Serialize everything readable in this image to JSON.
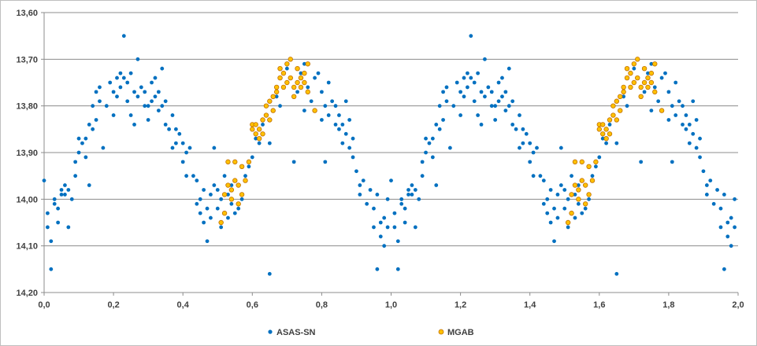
{
  "chart_data": {
    "type": "scatter",
    "title": "",
    "xlabel": "",
    "ylabel": "",
    "xlim": [
      0.0,
      2.0
    ],
    "ylim": [
      13.6,
      14.2
    ],
    "y_inverted": true,
    "grid": "horizontal major gridlines",
    "legend_position": "bottom",
    "x_ticks": [
      "0,0",
      "0,2",
      "0,4",
      "0,6",
      "0,8",
      "1,0",
      "1,2",
      "1,4",
      "1,6",
      "1,8",
      "2,0"
    ],
    "y_ticks": [
      "13,60",
      "13,70",
      "13,80",
      "13,90",
      "14,00",
      "14,10",
      "14,20"
    ],
    "series": [
      {
        "name": "ASAS-SN",
        "color": "#0070c0",
        "marker": "filled-circle",
        "note_periodic": "points repeat with phase offset 1.0",
        "points": [
          [
            0.0,
            13.96
          ],
          [
            0.01,
            14.03
          ],
          [
            0.01,
            14.06
          ],
          [
            0.02,
            14.09
          ],
          [
            0.02,
            14.15
          ],
          [
            0.03,
            14.01
          ],
          [
            0.03,
            14.0
          ],
          [
            0.04,
            14.05
          ],
          [
            0.04,
            14.02
          ],
          [
            0.05,
            13.99
          ],
          [
            0.05,
            13.98
          ],
          [
            0.06,
            13.97
          ],
          [
            0.06,
            13.99
          ],
          [
            0.07,
            14.06
          ],
          [
            0.07,
            13.98
          ],
          [
            0.08,
            14.0
          ],
          [
            0.09,
            13.95
          ],
          [
            0.09,
            13.92
          ],
          [
            0.1,
            13.87
          ],
          [
            0.1,
            13.9
          ],
          [
            0.11,
            13.88
          ],
          [
            0.12,
            13.91
          ],
          [
            0.12,
            13.87
          ],
          [
            0.13,
            13.84
          ],
          [
            0.13,
            13.97
          ],
          [
            0.14,
            13.8
          ],
          [
            0.14,
            13.85
          ],
          [
            0.15,
            13.77
          ],
          [
            0.15,
            13.83
          ],
          [
            0.16,
            13.76
          ],
          [
            0.16,
            13.79
          ],
          [
            0.17,
            13.89
          ],
          [
            0.18,
            13.8
          ],
          [
            0.19,
            13.75
          ],
          [
            0.2,
            13.77
          ],
          [
            0.2,
            13.82
          ],
          [
            0.21,
            13.74
          ],
          [
            0.21,
            13.78
          ],
          [
            0.22,
            13.73
          ],
          [
            0.22,
            13.76
          ],
          [
            0.23,
            13.65
          ],
          [
            0.23,
            13.74
          ],
          [
            0.24,
            13.75
          ],
          [
            0.24,
            13.79
          ],
          [
            0.25,
            13.73
          ],
          [
            0.25,
            13.82
          ],
          [
            0.26,
            13.77
          ],
          [
            0.26,
            13.84
          ],
          [
            0.27,
            13.7
          ],
          [
            0.27,
            13.78
          ],
          [
            0.28,
            13.76
          ],
          [
            0.29,
            13.8
          ],
          [
            0.29,
            13.77
          ],
          [
            0.3,
            13.83
          ],
          [
            0.3,
            13.8
          ],
          [
            0.31,
            13.75
          ],
          [
            0.31,
            13.79
          ],
          [
            0.32,
            13.74
          ],
          [
            0.32,
            13.78
          ],
          [
            0.33,
            13.81
          ],
          [
            0.33,
            13.77
          ],
          [
            0.34,
            13.72
          ],
          [
            0.34,
            13.8
          ],
          [
            0.35,
            13.84
          ],
          [
            0.35,
            13.79
          ],
          [
            0.36,
            13.85
          ],
          [
            0.37,
            13.82
          ],
          [
            0.37,
            13.89
          ],
          [
            0.38,
            13.85
          ],
          [
            0.38,
            13.88
          ],
          [
            0.39,
            13.86
          ],
          [
            0.4,
            13.88
          ],
          [
            0.4,
            13.92
          ],
          [
            0.41,
            13.9
          ],
          [
            0.41,
            13.95
          ],
          [
            0.42,
            13.89
          ],
          [
            0.43,
            13.95
          ],
          [
            0.44,
            13.96
          ],
          [
            0.44,
            14.01
          ],
          [
            0.45,
            14.0
          ],
          [
            0.45,
            14.03
          ],
          [
            0.46,
            13.98
          ],
          [
            0.46,
            14.05
          ],
          [
            0.47,
            14.02
          ],
          [
            0.47,
            14.09
          ],
          [
            0.48,
            13.99
          ],
          [
            0.48,
            14.04
          ],
          [
            0.49,
            13.89
          ],
          [
            0.49,
            13.97
          ],
          [
            0.5,
            13.98
          ],
          [
            0.5,
            14.02
          ],
          [
            0.51,
            14.0
          ],
          [
            0.51,
            14.06
          ],
          [
            0.52,
            13.95
          ],
          [
            0.53,
            13.99
          ],
          [
            0.53,
            14.04
          ],
          [
            0.54,
            13.97
          ],
          [
            0.54,
            14.01
          ],
          [
            0.55,
            13.96
          ],
          [
            0.55,
            14.03
          ],
          [
            0.56,
            14.02
          ],
          [
            0.57,
            13.99
          ],
          [
            0.57,
            14.0
          ],
          [
            0.58,
            13.95
          ],
          [
            0.59,
            13.93
          ],
          [
            0.6,
            13.91
          ],
          [
            0.61,
            13.87
          ],
          [
            0.62,
            13.88
          ],
          [
            0.63,
            13.84
          ],
          [
            0.64,
            13.82
          ],
          [
            0.65,
            13.88
          ],
          [
            0.65,
            14.16
          ],
          [
            0.66,
            13.81
          ],
          [
            0.67,
            13.78
          ],
          [
            0.68,
            13.8
          ],
          [
            0.69,
            13.76
          ],
          [
            0.7,
            13.72
          ],
          [
            0.71,
            13.74
          ],
          [
            0.72,
            13.78
          ],
          [
            0.72,
            13.92
          ],
          [
            0.73,
            13.77
          ],
          [
            0.74,
            13.73
          ],
          [
            0.75,
            13.71
          ],
          [
            0.75,
            13.81
          ],
          [
            0.76,
            13.76
          ],
          [
            0.77,
            13.79
          ],
          [
            0.78,
            13.74
          ],
          [
            0.79,
            13.73
          ],
          [
            0.8,
            13.77
          ],
          [
            0.8,
            13.83
          ],
          [
            0.81,
            13.8
          ],
          [
            0.81,
            13.92
          ],
          [
            0.82,
            13.75
          ],
          [
            0.82,
            13.82
          ],
          [
            0.83,
            13.79
          ],
          [
            0.84,
            13.84
          ],
          [
            0.84,
            13.8
          ],
          [
            0.85,
            13.85
          ],
          [
            0.85,
            13.82
          ],
          [
            0.86,
            13.88
          ],
          [
            0.86,
            13.84
          ],
          [
            0.87,
            13.79
          ],
          [
            0.87,
            13.86
          ],
          [
            0.88,
            13.83
          ],
          [
            0.88,
            13.89
          ],
          [
            0.89,
            13.91
          ],
          [
            0.89,
            13.87
          ],
          [
            0.9,
            13.94
          ],
          [
            0.91,
            13.97
          ],
          [
            0.91,
            13.99
          ],
          [
            0.92,
            13.96
          ],
          [
            0.93,
            14.01
          ],
          [
            0.94,
            13.98
          ],
          [
            0.95,
            14.06
          ],
          [
            0.95,
            14.02
          ],
          [
            0.96,
            14.15
          ],
          [
            0.96,
            13.99
          ],
          [
            0.97,
            14.05
          ],
          [
            0.97,
            14.08
          ],
          [
            0.98,
            14.04
          ],
          [
            0.98,
            14.1
          ],
          [
            0.99,
            14.06
          ],
          [
            0.99,
            14.0
          ]
        ]
      },
      {
        "name": "MGAB",
        "color": "#ffc000",
        "stroke": "#c07000",
        "marker": "open-circle",
        "note_periodic": "points repeat with phase offset 1.0",
        "points": [
          [
            0.51,
            14.05
          ],
          [
            0.52,
            13.99
          ],
          [
            0.52,
            14.03
          ],
          [
            0.53,
            13.92
          ],
          [
            0.53,
            13.97
          ],
          [
            0.54,
            14.0
          ],
          [
            0.54,
            13.98
          ],
          [
            0.55,
            13.92
          ],
          [
            0.55,
            13.96
          ],
          [
            0.56,
            14.01
          ],
          [
            0.56,
            13.97
          ],
          [
            0.57,
            13.93
          ],
          [
            0.57,
            13.99
          ],
          [
            0.58,
            13.96
          ],
          [
            0.59,
            13.92
          ],
          [
            0.6,
            13.84
          ],
          [
            0.6,
            13.85
          ],
          [
            0.61,
            13.86
          ],
          [
            0.61,
            13.84
          ],
          [
            0.62,
            13.85
          ],
          [
            0.62,
            13.87
          ],
          [
            0.63,
            13.86
          ],
          [
            0.63,
            13.83
          ],
          [
            0.64,
            13.8
          ],
          [
            0.64,
            13.82
          ],
          [
            0.65,
            13.79
          ],
          [
            0.65,
            13.83
          ],
          [
            0.66,
            13.81
          ],
          [
            0.66,
            13.78
          ],
          [
            0.67,
            13.77
          ],
          [
            0.67,
            13.76
          ],
          [
            0.68,
            13.74
          ],
          [
            0.68,
            13.72
          ],
          [
            0.69,
            13.73
          ],
          [
            0.69,
            13.76
          ],
          [
            0.7,
            13.71
          ],
          [
            0.7,
            13.75
          ],
          [
            0.71,
            13.7
          ],
          [
            0.71,
            13.74
          ],
          [
            0.72,
            13.76
          ],
          [
            0.72,
            13.78
          ],
          [
            0.73,
            13.75
          ],
          [
            0.73,
            13.72
          ],
          [
            0.74,
            13.74
          ],
          [
            0.74,
            13.76
          ],
          [
            0.75,
            13.73
          ],
          [
            0.75,
            13.75
          ],
          [
            0.76,
            13.71
          ],
          [
            0.76,
            13.77
          ],
          [
            0.78,
            13.81
          ]
        ]
      }
    ]
  }
}
